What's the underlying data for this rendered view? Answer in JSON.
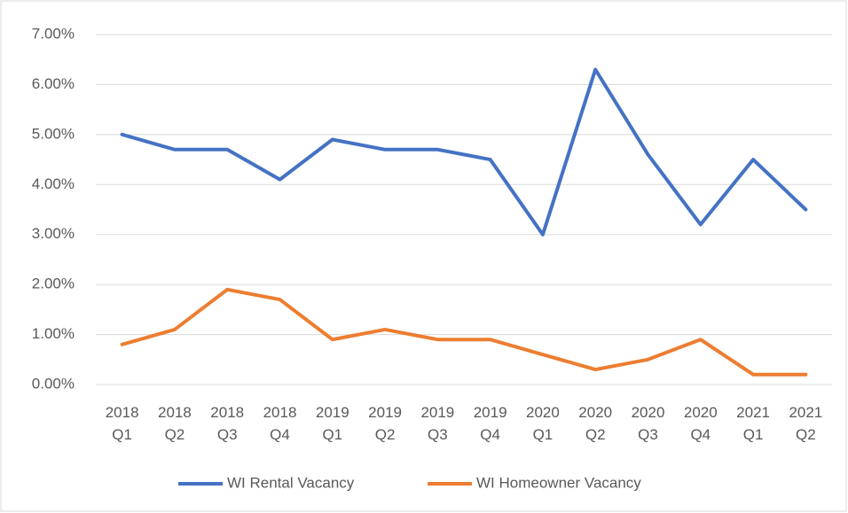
{
  "chart_data": {
    "type": "line",
    "categories": [
      "2018 Q1",
      "2018 Q2",
      "2018 Q3",
      "2018 Q4",
      "2019 Q1",
      "2019 Q2",
      "2019 Q3",
      "2019 Q4",
      "2020 Q1",
      "2020 Q2",
      "2020 Q3",
      "2020 Q4",
      "2021 Q1",
      "2021 Q2"
    ],
    "series": [
      {
        "name": "WI Rental Vacancy",
        "color": "#4472c4",
        "values": [
          5.0,
          4.7,
          4.7,
          4.1,
          4.9,
          4.7,
          4.7,
          4.5,
          3.0,
          6.3,
          4.6,
          3.2,
          4.5,
          3.5
        ]
      },
      {
        "name": "WI Homeowner Vacancy",
        "color": "#ed7d31",
        "values": [
          0.8,
          1.1,
          1.9,
          1.7,
          0.9,
          1.1,
          0.9,
          0.9,
          0.6,
          0.3,
          0.5,
          0.9,
          0.2,
          0.2
        ]
      }
    ],
    "ylim": [
      0,
      7
    ],
    "yticks": [
      {
        "value": 0,
        "label": "0.00%"
      },
      {
        "value": 1,
        "label": "1.00%"
      },
      {
        "value": 2,
        "label": "2.00%"
      },
      {
        "value": 3,
        "label": "3.00%"
      },
      {
        "value": 4,
        "label": "4.00%"
      },
      {
        "value": 5,
        "label": "5.00%"
      },
      {
        "value": 6,
        "label": "6.00%"
      },
      {
        "value": 7,
        "label": "7.00%"
      }
    ],
    "grid": true,
    "legend": "bottom"
  }
}
